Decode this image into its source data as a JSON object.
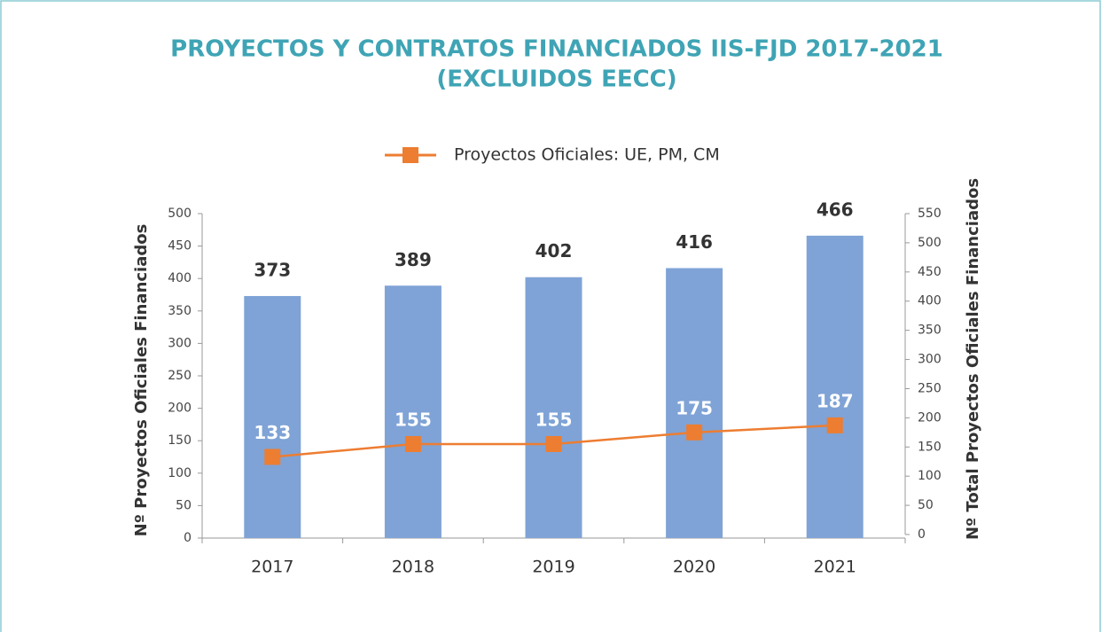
{
  "chart_data": {
    "type": "bar",
    "title": [
      "PROYECTOS Y CONTRATOS FINANCIADOS IIS-FJD 2017-2021",
      "(EXCLUIDOS EECC)"
    ],
    "ylabel": "Nº Proyectos Oficiales Financiados",
    "y2label": "Nº Total Proyectos Oficiales Financiados",
    "categories": [
      "2017",
      "2018",
      "2019",
      "2020",
      "2021"
    ],
    "series": [
      {
        "type": "bar",
        "color": "#7fa3d6",
        "values": [
          373,
          389,
          402,
          416,
          466
        ]
      },
      {
        "type": "line",
        "name": "Proyectos Oficiales: UE, PM, CM",
        "color": "#ed7d31",
        "axis": "y2",
        "values": [
          133,
          155,
          155,
          175,
          187
        ]
      }
    ],
    "ylim": [
      0,
      500
    ],
    "yticks": [
      0,
      50,
      100,
      150,
      200,
      250,
      300,
      350,
      400,
      450,
      500
    ],
    "y2lim": [
      0,
      550
    ],
    "y2ticks": [
      0,
      50,
      100,
      150,
      200,
      250,
      300,
      350,
      400,
      450,
      500,
      550
    ],
    "legend": "top"
  }
}
